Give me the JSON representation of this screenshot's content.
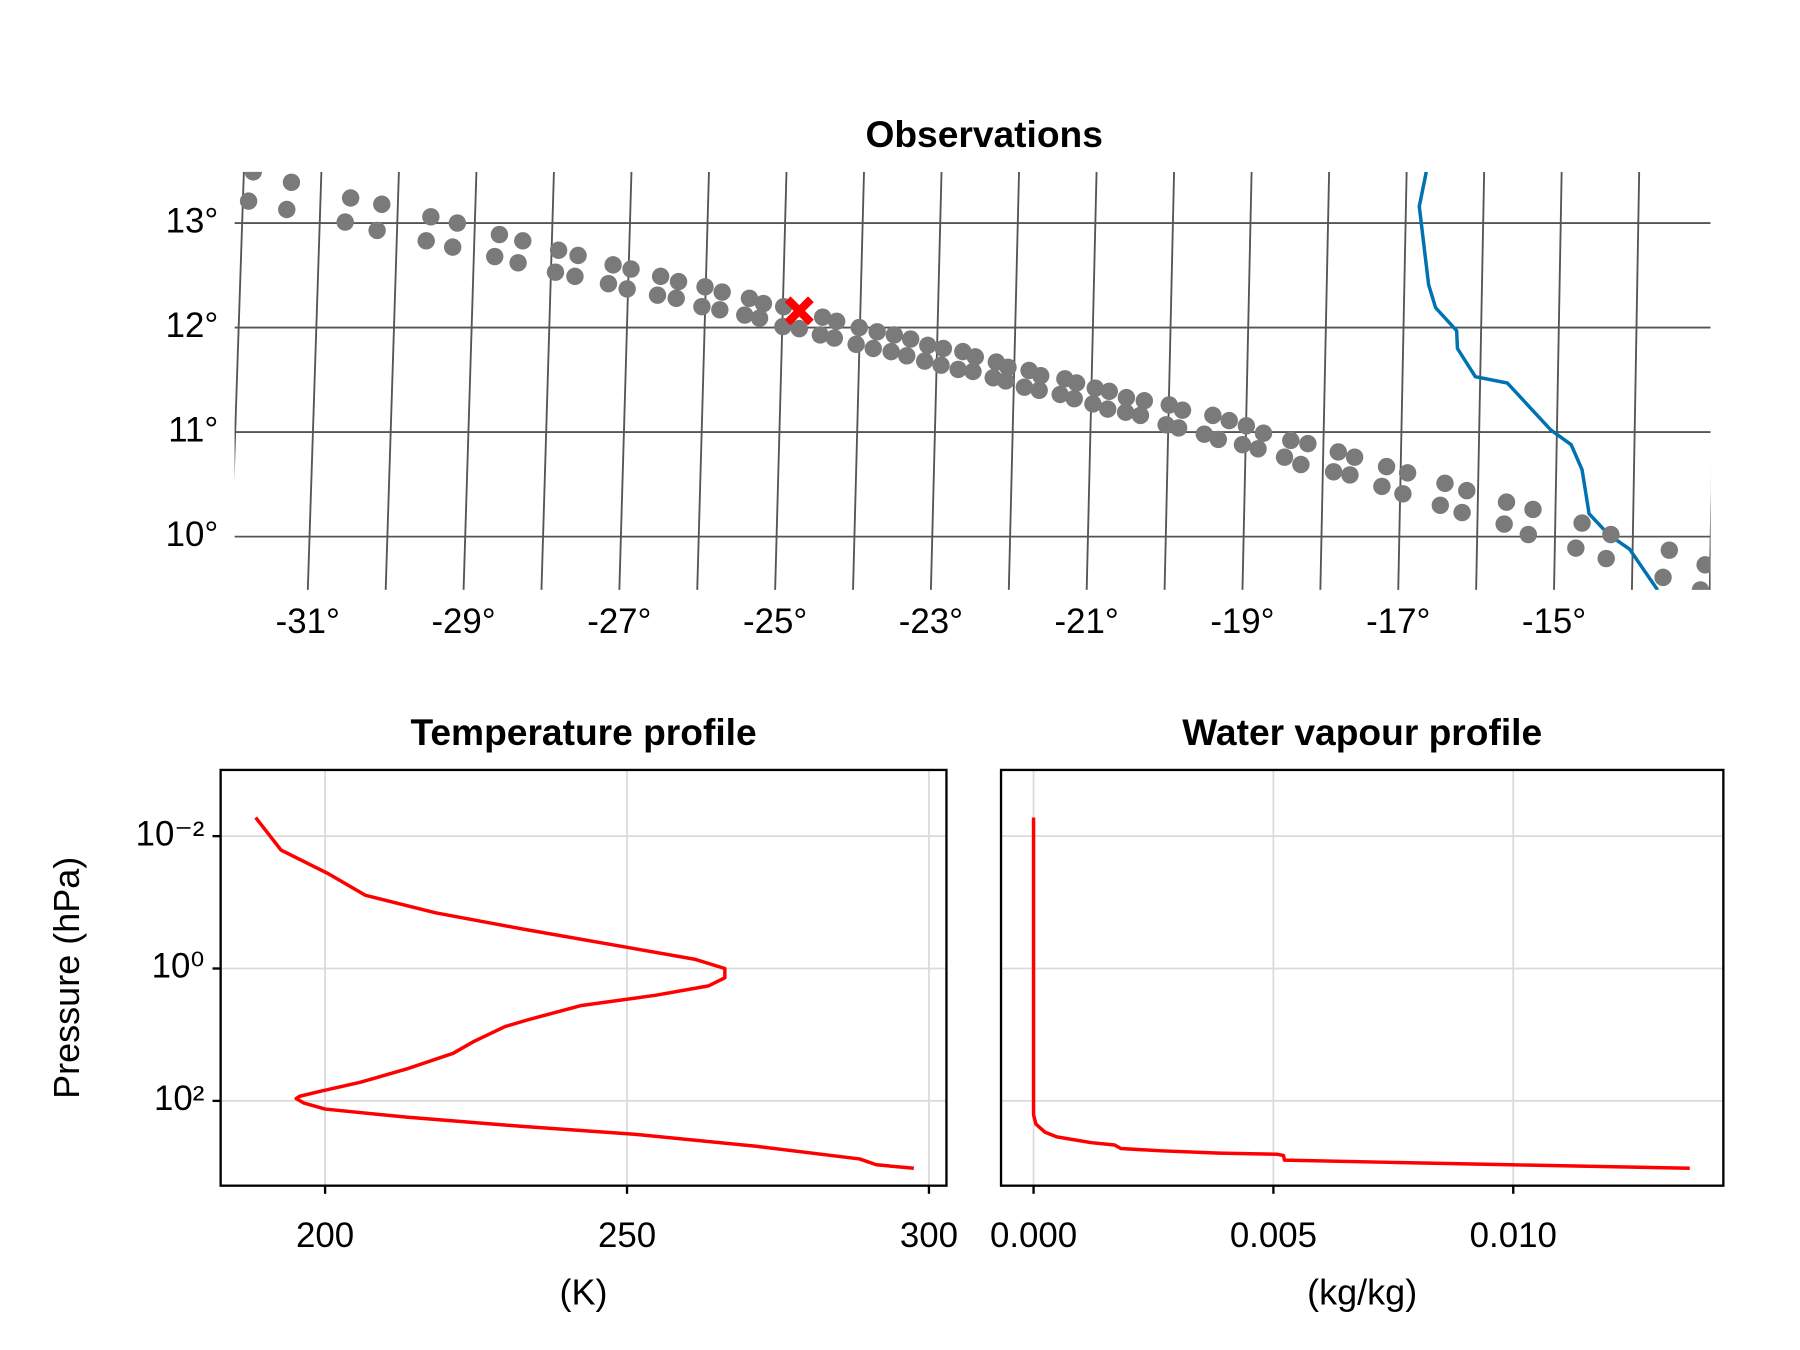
{
  "chart_data": [
    {
      "type": "map",
      "title": "Observations",
      "xlim": [
        -31.94,
        -12.99
      ],
      "ylim": [
        9.49,
        13.49
      ],
      "xticks": [
        {
          "value": -31,
          "label": "-31°"
        },
        {
          "value": -29,
          "label": "-29°"
        },
        {
          "value": -27,
          "label": "-27°"
        },
        {
          "value": -25,
          "label": "-25°"
        },
        {
          "value": -23,
          "label": "-23°"
        },
        {
          "value": -21,
          "label": "-21°"
        },
        {
          "value": -19,
          "label": "-19°"
        },
        {
          "value": -17,
          "label": "-17°"
        },
        {
          "value": -15,
          "label": "-15°"
        }
      ],
      "yticks": [
        {
          "value": 10,
          "label": "10°"
        },
        {
          "value": 11,
          "label": "11°"
        },
        {
          "value": 12,
          "label": "12°"
        },
        {
          "value": 13,
          "label": "13°"
        }
      ],
      "meridians": [
        -32,
        -31,
        -30,
        -29,
        -28,
        -27,
        -26,
        -25,
        -24,
        -23,
        -22,
        -21,
        -20,
        -19,
        -18,
        -17,
        -16,
        -15,
        -14,
        -13
      ],
      "grid": true,
      "points": {
        "color": "#7a7a7a",
        "x": [
          -31.7,
          -31.21,
          -31.76,
          -31.27,
          -30.45,
          -30.05,
          -30.52,
          -30.11,
          -29.42,
          -29.08,
          -29.48,
          -29.14,
          -28.54,
          -28.24,
          -28.6,
          -28.3,
          -27.78,
          -27.53,
          -27.82,
          -27.57,
          -27.08,
          -26.85,
          -27.14,
          -26.9,
          -26.47,
          -26.24,
          -26.51,
          -26.27,
          -25.9,
          -25.68,
          -25.94,
          -25.71,
          -25.33,
          -25.15,
          -25.39,
          -25.2,
          -24.89,
          -24.9,
          -24.69,
          -24.39,
          -24.21,
          -24.42,
          -24.24,
          -23.92,
          -23.69,
          -23.96,
          -23.74,
          -23.47,
          -23.26,
          -23.51,
          -23.31,
          -23.04,
          -22.84,
          -23.08,
          -22.87,
          -22.59,
          -22.43,
          -22.65,
          -22.46,
          -22.16,
          -22.01,
          -22.2,
          -22.04,
          -21.74,
          -21.59,
          -21.8,
          -21.61,
          -21.28,
          -21.13,
          -21.34,
          -21.16,
          -20.89,
          -20.71,
          -20.92,
          -20.73,
          -20.49,
          -20.26,
          -20.5,
          -20.31,
          -19.94,
          -19.77,
          -19.98,
          -19.82,
          -19.38,
          -19.17,
          -19.49,
          -19.31,
          -18.95,
          -18.73,
          -19.0,
          -18.8,
          -18.38,
          -18.16,
          -18.46,
          -18.25,
          -17.77,
          -17.56,
          -17.83,
          -17.62,
          -17.15,
          -16.88,
          -17.21,
          -16.94,
          -16.4,
          -16.12,
          -16.46,
          -16.18,
          -15.61,
          -15.27,
          -15.64,
          -15.33,
          -14.64,
          -14.27,
          -14.72,
          -14.33,
          -13.52,
          -13.06,
          -13.6,
          -13.12
        ],
        "y": [
          13.49,
          13.39,
          13.21,
          13.13,
          13.24,
          13.18,
          13.01,
          12.93,
          13.06,
          13.0,
          12.83,
          12.77,
          12.89,
          12.83,
          12.68,
          12.62,
          12.74,
          12.69,
          12.53,
          12.49,
          12.6,
          12.56,
          12.42,
          12.37,
          12.49,
          12.44,
          12.31,
          12.28,
          12.39,
          12.34,
          12.2,
          12.17,
          12.28,
          12.23,
          12.12,
          12.09,
          12.2,
          12.01,
          11.99,
          12.1,
          12.06,
          11.93,
          11.9,
          12.0,
          11.96,
          11.84,
          11.8,
          11.93,
          11.89,
          11.77,
          11.73,
          11.83,
          11.8,
          11.68,
          11.64,
          11.77,
          11.72,
          11.6,
          11.58,
          11.67,
          11.62,
          11.52,
          11.49,
          11.59,
          11.54,
          11.43,
          11.4,
          11.51,
          11.47,
          11.36,
          11.32,
          11.42,
          11.39,
          11.27,
          11.22,
          11.33,
          11.3,
          11.19,
          11.16,
          11.26,
          11.21,
          11.07,
          11.04,
          11.16,
          11.11,
          10.98,
          10.93,
          11.06,
          10.99,
          10.88,
          10.84,
          10.92,
          10.89,
          10.76,
          10.69,
          10.81,
          10.76,
          10.62,
          10.59,
          10.67,
          10.61,
          10.48,
          10.41,
          10.51,
          10.44,
          10.3,
          10.23,
          10.33,
          10.26,
          10.12,
          10.02,
          10.13,
          10.02,
          9.89,
          9.79,
          9.87,
          9.73,
          9.61,
          9.49
        ]
      },
      "marker": {
        "color": "#ff0000",
        "x": -24.69,
        "y": 12.16
      },
      "coastline": {
        "color": "#0072b2",
        "x": [
          -16.64,
          -16.73,
          -16.61,
          -16.52,
          -16.25,
          -16.24,
          -16.01,
          -15.6,
          -15.04,
          -14.78,
          -14.64,
          -14.55,
          -14.3,
          -14.03,
          -13.67
        ],
        "y": [
          13.49,
          13.16,
          12.41,
          12.19,
          11.97,
          11.8,
          11.53,
          11.47,
          11.02,
          10.88,
          10.64,
          10.22,
          10.02,
          9.88,
          9.49
        ]
      }
    },
    {
      "type": "line",
      "title": "Temperature profile",
      "xlabel": "(K)",
      "ylabel": "Pressure (hPa)",
      "xlim": [
        182.7,
        302.9
      ],
      "ylim": [
        0.001,
        1910
      ],
      "ylog": true,
      "yreverse": true,
      "grid": true,
      "xticks": [
        200,
        250,
        300
      ],
      "yticks": [
        {
          "value": 0.01,
          "label": "10⁻²"
        },
        {
          "value": 1,
          "label": "10⁰"
        },
        {
          "value": 100,
          "label": "10²"
        }
      ],
      "show_ytick_labels": true,
      "series": [
        {
          "color": "#ff0000",
          "x": [
            188.5,
            192.7,
            200.4,
            206.7,
            218.3,
            232.7,
            248.1,
            261.2,
            266.2,
            266.2,
            263.5,
            254.8,
            242.3,
            233.7,
            229.8,
            224.6,
            221.2,
            213.8,
            205.8,
            199.0,
            195.8,
            195.2,
            196.5,
            200.0,
            213.5,
            232.7,
            251.9,
            271.2,
            288.5,
            291.3,
            297.5
          ],
          "y": [
            0.00524,
            0.01625,
            0.0364,
            0.0785,
            0.144,
            0.253,
            0.446,
            0.724,
            1.0,
            1.38,
            1.83,
            2.53,
            3.64,
            5.92,
            7.54,
            12.7,
            19.1,
            32.3,
            52.4,
            72.4,
            85.1,
            92.2,
            108,
            133,
            176,
            243,
            323,
            483,
            754,
            923,
            1042
          ]
        }
      ]
    },
    {
      "type": "line",
      "title": "Water vapour  profile",
      "xlabel": "(kg/kg)",
      "xlim": [
        -0.000678,
        0.01438
      ],
      "ylim": [
        0.001,
        1910
      ],
      "ylog": true,
      "yreverse": true,
      "grid": true,
      "xticks": [
        {
          "value": 0,
          "label": "0.000"
        },
        {
          "value": 0.005,
          "label": "0.005"
        },
        {
          "value": 0.01,
          "label": "0.010"
        }
      ],
      "yticks": [
        0.01,
        1,
        100
      ],
      "show_ytick_labels": false,
      "series": [
        {
          "color": "#ff0000",
          "x": [
            0,
            0,
            4.84e-05,
            0.000242,
            0.000484,
            0.00121,
            0.00169,
            0.00182,
            0.00266,
            0.00387,
            0.00508,
            0.00521,
            0.00523,
            0.00751,
            0.00993,
            0.01368
          ],
          "y": [
            0.00524,
            162,
            224,
            298,
            350,
            428,
            464,
            524,
            568,
            615,
            641,
            668,
            785,
            851,
            923,
            1042
          ]
        }
      ]
    }
  ]
}
